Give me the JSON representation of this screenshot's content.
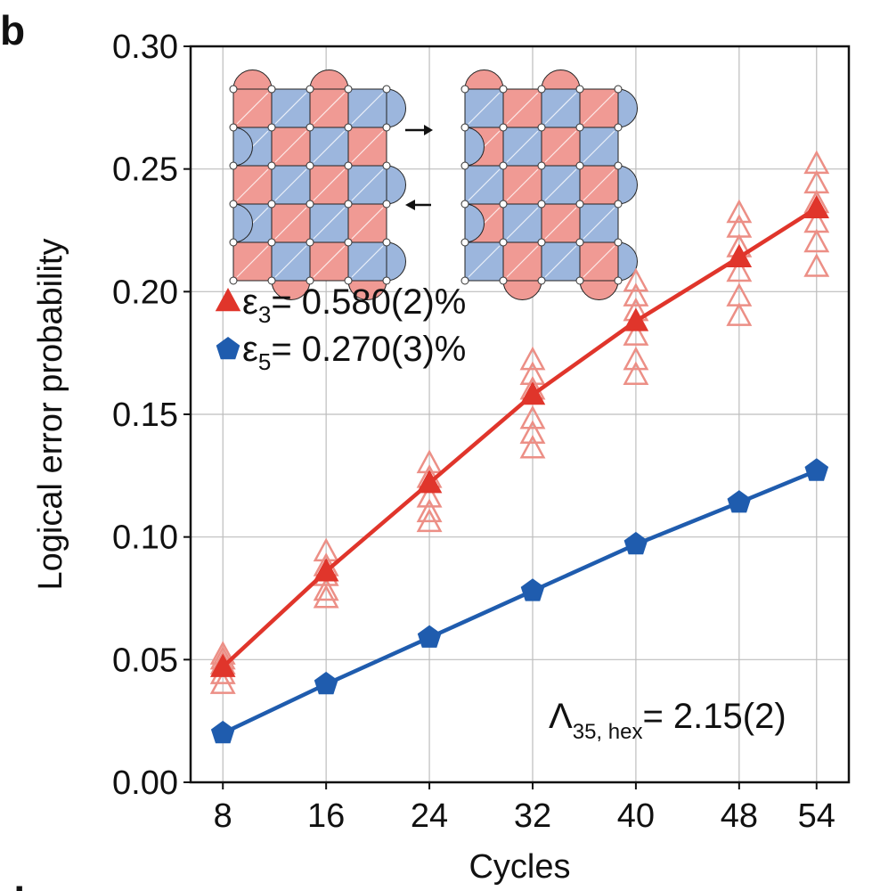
{
  "panel_label": "b",
  "next_panel_label": "d",
  "chart_data": {
    "type": "line",
    "xlabel": "Cycles",
    "ylabel": "Logical error probability",
    "x_ticks": [
      "8",
      "16",
      "24",
      "32",
      "40",
      "48",
      "54"
    ],
    "y_ticks": [
      "0.00",
      "0.05",
      "0.10",
      "0.15",
      "0.20",
      "0.25",
      "0.30"
    ],
    "xlim": [
      5.5,
      56.5
    ],
    "ylim": [
      0,
      0.3
    ],
    "grid": true,
    "legend_position": "upper-left",
    "annotation": {
      "lambda_symbol": "Λ",
      "lambda_subscript": "35, hex",
      "lambda_value": "= 2.15(2)"
    },
    "series": [
      {
        "name_symbol": "ε",
        "name_subscript": "3",
        "name_value": "= 0.580(2)%",
        "marker": "triangle",
        "color": "#e0352b",
        "x": [
          8,
          16,
          24,
          32,
          40,
          48,
          54
        ],
        "y": [
          0.047,
          0.086,
          0.122,
          0.158,
          0.188,
          0.214,
          0.234
        ],
        "individual_runs": [
          [
            0.052,
            0.048,
            0.044,
            0.04,
            0.05
          ],
          [
            0.094,
            0.088,
            0.084,
            0.078,
            0.075
          ],
          [
            0.13,
            0.124,
            0.116,
            0.11,
            0.106
          ],
          [
            0.172,
            0.166,
            0.16,
            0.148,
            0.142,
            0.136
          ],
          [
            0.204,
            0.198,
            0.192,
            0.182,
            0.172,
            0.166
          ],
          [
            0.232,
            0.226,
            0.218,
            0.208,
            0.198,
            0.19
          ],
          [
            0.252,
            0.244,
            0.236,
            0.228,
            0.22,
            0.21
          ]
        ]
      },
      {
        "name_symbol": "ε",
        "name_subscript": "5",
        "name_value": "= 0.270(3)%",
        "marker": "pentagon",
        "color": "#1f5cae",
        "x": [
          8,
          16,
          24,
          32,
          40,
          48,
          54
        ],
        "y": [
          0.02,
          0.04,
          0.059,
          0.078,
          0.097,
          0.114,
          0.127
        ]
      }
    ]
  },
  "colors": {
    "red_series": "#e0352b",
    "blue_series": "#1f5cae",
    "red_faint": "#ec8f86",
    "inset_red": "#f09a94",
    "inset_blue": "#9cb6dd",
    "grid": "#bdbdbd"
  }
}
